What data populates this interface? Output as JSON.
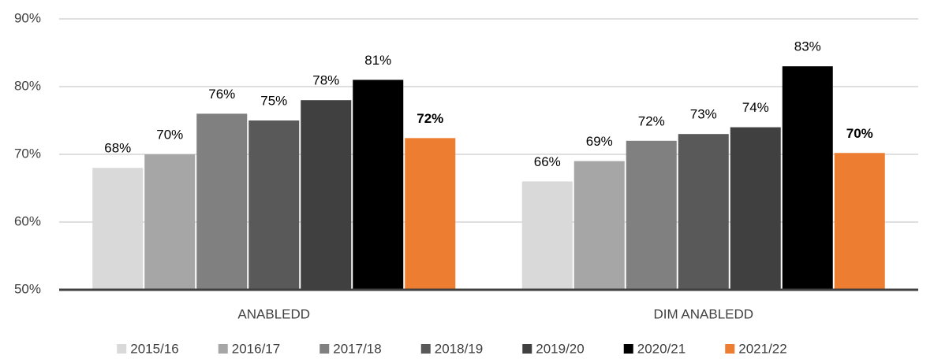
{
  "chart_data": {
    "type": "bar",
    "categories": [
      "ANABLEDD",
      "DIM ANABLEDD"
    ],
    "series": [
      {
        "name": "2015/16",
        "color": "#d9d9d9",
        "values": [
          68,
          66
        ],
        "value_labels": [
          "68%",
          "66%"
        ]
      },
      {
        "name": "2016/17",
        "color": "#a6a6a6",
        "values": [
          70,
          69
        ],
        "value_labels": [
          "70%",
          "69%"
        ]
      },
      {
        "name": "2017/18",
        "color": "#808080",
        "values": [
          76,
          72
        ],
        "value_labels": [
          "76%",
          "72%"
        ]
      },
      {
        "name": "2018/19",
        "color": "#595959",
        "values": [
          75,
          73
        ],
        "value_labels": [
          "75%",
          "73%"
        ]
      },
      {
        "name": "2019/20",
        "color": "#404040",
        "values": [
          78,
          74
        ],
        "value_labels": [
          "78%",
          "74%"
        ]
      },
      {
        "name": "2020/21",
        "color": "#000000",
        "values": [
          81,
          83
        ],
        "value_labels": [
          "81%",
          "83%"
        ]
      },
      {
        "name": "2021/22",
        "color": "#ed7d31",
        "values": [
          72.4,
          70.2
        ],
        "value_labels": [
          "72%",
          "70%"
        ],
        "bold_labels": true
      }
    ],
    "ylim": [
      50,
      90
    ],
    "yticks": [
      {
        "value": 50,
        "label": "50%"
      },
      {
        "value": 60,
        "label": "60%"
      },
      {
        "value": 70,
        "label": "70%"
      },
      {
        "value": 80,
        "label": "80%"
      },
      {
        "value": 90,
        "label": "90%"
      }
    ],
    "grid": true,
    "legend": "bottom"
  }
}
